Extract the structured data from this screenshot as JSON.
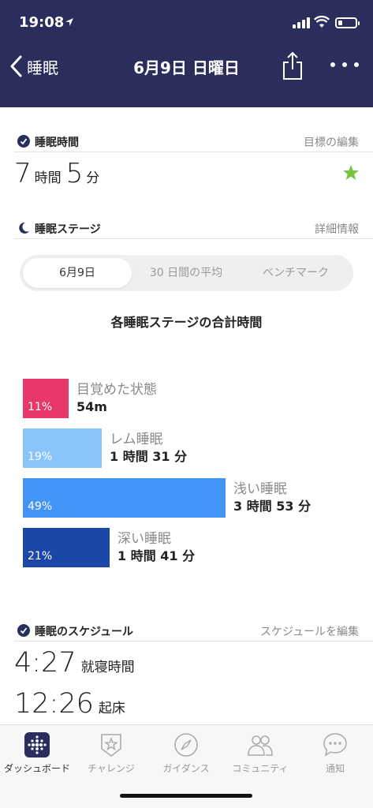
{
  "status_bar": {
    "time": "19:08",
    "location_icon": "location-arrow-icon"
  },
  "nav": {
    "back_label": "睡眠",
    "title": "6月9日 日曜日"
  },
  "sleep_time": {
    "title": "睡眠時間",
    "action": "目標の編集",
    "hours": "7",
    "hours_unit": "時間",
    "minutes": "5",
    "minutes_unit": "分",
    "goal_icon": "star-icon",
    "goal_color": "#7bc142"
  },
  "sleep_stages": {
    "title": "睡眠ステージ",
    "action": "詳細情報",
    "tabs": [
      {
        "label": "6月9日",
        "active": true
      },
      {
        "label": "30 日間の平均",
        "active": false
      },
      {
        "label": "ベンチマーク",
        "active": false
      }
    ],
    "chart_title": "各睡眠ステージの合計時間",
    "stages": [
      {
        "name": "目覚めた状態",
        "percent": "11%",
        "value": "54m",
        "share": 0.11,
        "color": "#e8386a"
      },
      {
        "name": "レム睡眠",
        "percent": "19%",
        "value": "1 時間 31 分",
        "share": 0.19,
        "color": "#89c4fb"
      },
      {
        "name": "浅い睡眠",
        "percent": "49%",
        "value": "3 時間 53 分",
        "share": 0.49,
        "color": "#4394f7"
      },
      {
        "name": "深い睡眠",
        "percent": "21%",
        "value": "1 時間 41 分",
        "share": 0.21,
        "color": "#1b47a8"
      }
    ]
  },
  "schedule": {
    "title": "睡眠のスケジュール",
    "action": "スケジュールを編集",
    "bedtime": "4:27",
    "bedtime_label": "就寝時間",
    "wake": "12:26",
    "wake_label": "起床"
  },
  "tabbar": [
    {
      "label": "ダッシュボード",
      "icon": "dashboard-icon",
      "active": true
    },
    {
      "label": "チャレンジ",
      "icon": "challenge-star-icon",
      "active": false
    },
    {
      "label": "ガイダンス",
      "icon": "compass-icon",
      "active": false
    },
    {
      "label": "コミュニティ",
      "icon": "community-icon",
      "active": false
    },
    {
      "label": "通知",
      "icon": "notification-bubble-icon",
      "active": false
    }
  ],
  "colors": {
    "header_bg": "#2b2d5c",
    "muted_text": "#8a8a8a"
  }
}
